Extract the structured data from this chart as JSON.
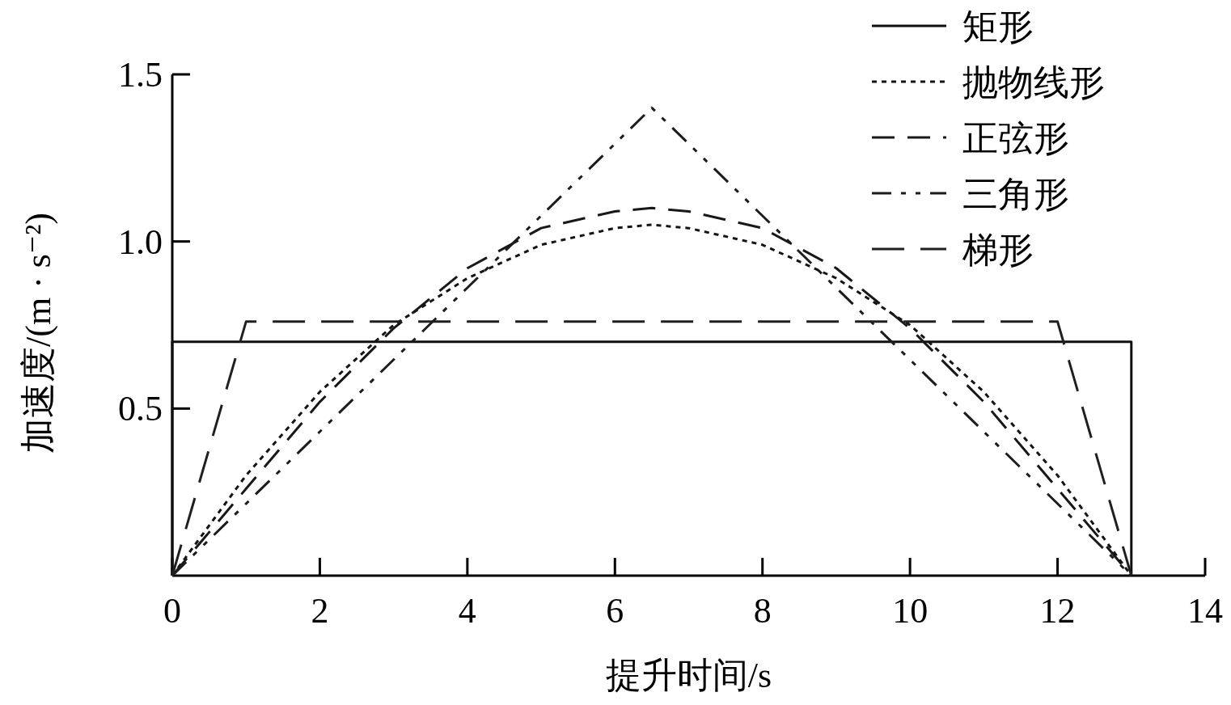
{
  "chart_data": {
    "type": "line",
    "xlabel": "提升时间/s",
    "ylabel": "加速度/(m · s⁻²)",
    "xlim": [
      0,
      14
    ],
    "ylim": [
      0,
      1.5
    ],
    "xticks": [
      0,
      2,
      4,
      6,
      8,
      10,
      12,
      14
    ],
    "yticks": [
      0.5,
      {
        "value": 1,
        "label": "1.0"
      },
      1.5
    ],
    "grid": false,
    "legend": "top right",
    "marker": "none",
    "series": [
      {
        "name": "矩形",
        "color": "#101010",
        "line_style": "solid",
        "x": [
          0,
          0,
          13,
          13
        ],
        "values": [
          0,
          0.7,
          0.7,
          0
        ]
      },
      {
        "name": "抛物线形",
        "color": "#141414",
        "line_style": "dotted",
        "x": [
          0,
          1,
          2,
          3,
          4,
          5,
          6,
          6.5,
          7,
          8,
          9,
          10,
          11,
          12,
          13
        ],
        "values": [
          0,
          0.3,
          0.55,
          0.75,
          0.89,
          0.99,
          1.04,
          1.05,
          1.04,
          0.99,
          0.89,
          0.75,
          0.55,
          0.3,
          0
        ]
      },
      {
        "name": "正弦形",
        "color": "#181818",
        "line_style": "dashed",
        "x": [
          0,
          1,
          2,
          3,
          4,
          5,
          6,
          6.5,
          7,
          8,
          9,
          10,
          11,
          12,
          13
        ],
        "values": [
          0,
          0.26,
          0.52,
          0.74,
          0.92,
          1.04,
          1.09,
          1.1,
          1.09,
          1.04,
          0.92,
          0.74,
          0.52,
          0.26,
          0
        ]
      },
      {
        "name": "三角形",
        "color": "#1c1c1c",
        "line_style": "dashed",
        "x": [
          0,
          6.5,
          13
        ],
        "values": [
          0,
          1.4,
          0
        ]
      },
      {
        "name": "梯形",
        "color": "#202020",
        "line_style": "dashed",
        "x": [
          0,
          1,
          12,
          13
        ],
        "values": [
          0,
          0.76,
          0.76,
          0
        ]
      }
    ]
  }
}
